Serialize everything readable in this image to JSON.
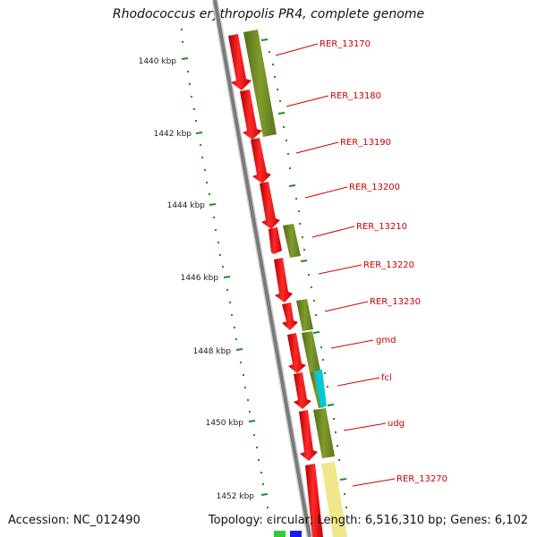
{
  "title": "Rhodococcus erythropolis PR4, complete genome",
  "footer": {
    "accession": "Accession: NC_012490",
    "topology": "Topology: circular; Length: 6,516,310 bp; Genes: 6,102"
  },
  "ruler_ticks": [
    "1440 kbp",
    "1442 kbp",
    "1444 kbp",
    "1446 kbp",
    "1448 kbp",
    "1450 kbp",
    "1452 kbp"
  ],
  "gene_labels": [
    "RER_13170",
    "RER_13180",
    "RER_13190",
    "RER_13200",
    "RER_13210",
    "RER_13220",
    "RER_13230",
    "gmd",
    "fcl",
    "udg",
    "RER_13270"
  ],
  "colors": {
    "backbone": "#7a7a7a",
    "cds": "#ee0000",
    "cog_green": "#6b8e23",
    "cog_cyan": "#00c8d8",
    "cog_yellow": "#f0e68c",
    "label": "#cc0000",
    "ruler": "#228b22"
  }
}
